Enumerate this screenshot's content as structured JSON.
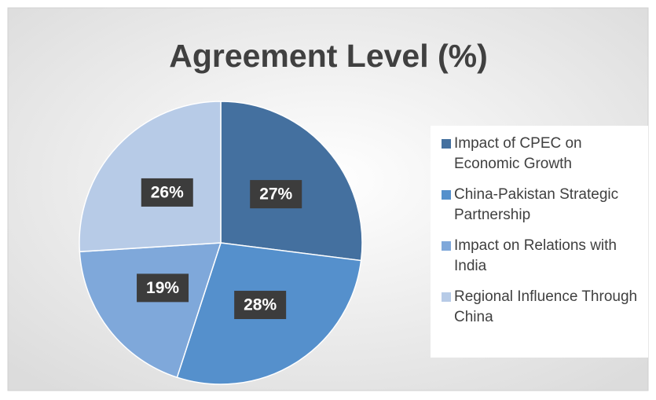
{
  "chart_data": {
    "type": "pie",
    "title": "Agreement Level (%)",
    "categories": [
      "Impact of CPEC on Economic Growth",
      "China-Pakistan Strategic Partnership",
      "Impact on Relations with India",
      "Regional Influence Through China"
    ],
    "values": [
      27,
      28,
      19,
      26
    ],
    "value_labels": [
      "27%",
      "28%",
      "19%",
      "26%"
    ],
    "colors": [
      "#44709f",
      "#5590cc",
      "#7fa8da",
      "#b7cbe7"
    ],
    "legend": "right"
  }
}
